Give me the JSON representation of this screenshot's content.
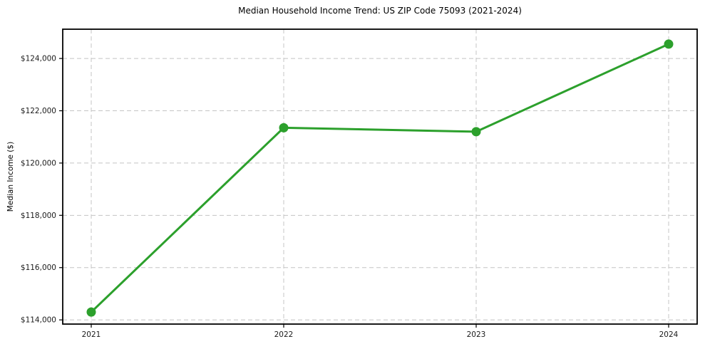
{
  "title": "Median Household Income Trend: US ZIP Code 75093 (2021-2024)",
  "chart_data": {
    "type": "line",
    "title": "Median Household Income Trend: US ZIP Code 75093 (2021-2024)",
    "categories": [
      "2021",
      "2022",
      "2023",
      "2024"
    ],
    "values": [
      114300,
      121350,
      121200,
      124550
    ],
    "xlabel": "",
    "ylabel": "Median Income ($)",
    "ylim": [
      113840,
      125120
    ],
    "yticks": [
      114000,
      116000,
      118000,
      120000,
      122000,
      124000
    ],
    "ytick_labels": [
      "$114,000",
      "$116,000",
      "$118,000",
      "$120,000",
      "$122,000",
      "$124,000"
    ],
    "xtick_labels": [
      "2021",
      "2022",
      "2023",
      "2024"
    ],
    "grid": "both-dashed",
    "legend": "none",
    "colors": {
      "line": "#2ca02c",
      "marker": "#2ca02c",
      "grid": "#c4c4c4",
      "spine": "#000000",
      "text": "#1a1a1a",
      "background": "#ffffff"
    }
  }
}
